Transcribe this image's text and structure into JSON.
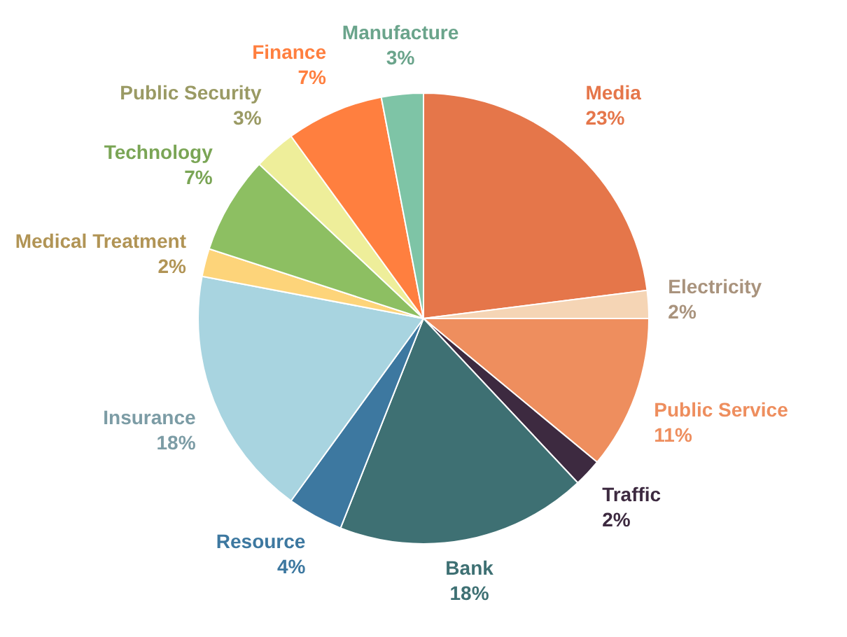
{
  "chart_data": {
    "type": "pie",
    "categories": [
      "Media",
      "Electricity",
      "Public Service",
      "Traffic",
      "Bank",
      "Resource",
      "Insurance",
      "Medical Treatment",
      "Technology",
      "Public Security",
      "Finance",
      "Manufacture"
    ],
    "values": [
      23,
      2,
      11,
      2,
      18,
      4,
      18,
      2,
      7,
      3,
      7,
      3
    ],
    "value_labels": [
      "23%",
      "2%",
      "11%",
      "2%",
      "18%",
      "4%",
      "18%",
      "2%",
      "7%",
      "3%",
      "7%",
      "3%"
    ],
    "colors": [
      "#e5764a",
      "#f5d5b5",
      "#ee8e5e",
      "#3d2a40",
      "#3e7073",
      "#3d78a0",
      "#a8d4e0",
      "#fdd47a",
      "#8dbf62",
      "#eeee9a",
      "#ff7f3f",
      "#7ec4a6"
    ],
    "legend": false
  }
}
